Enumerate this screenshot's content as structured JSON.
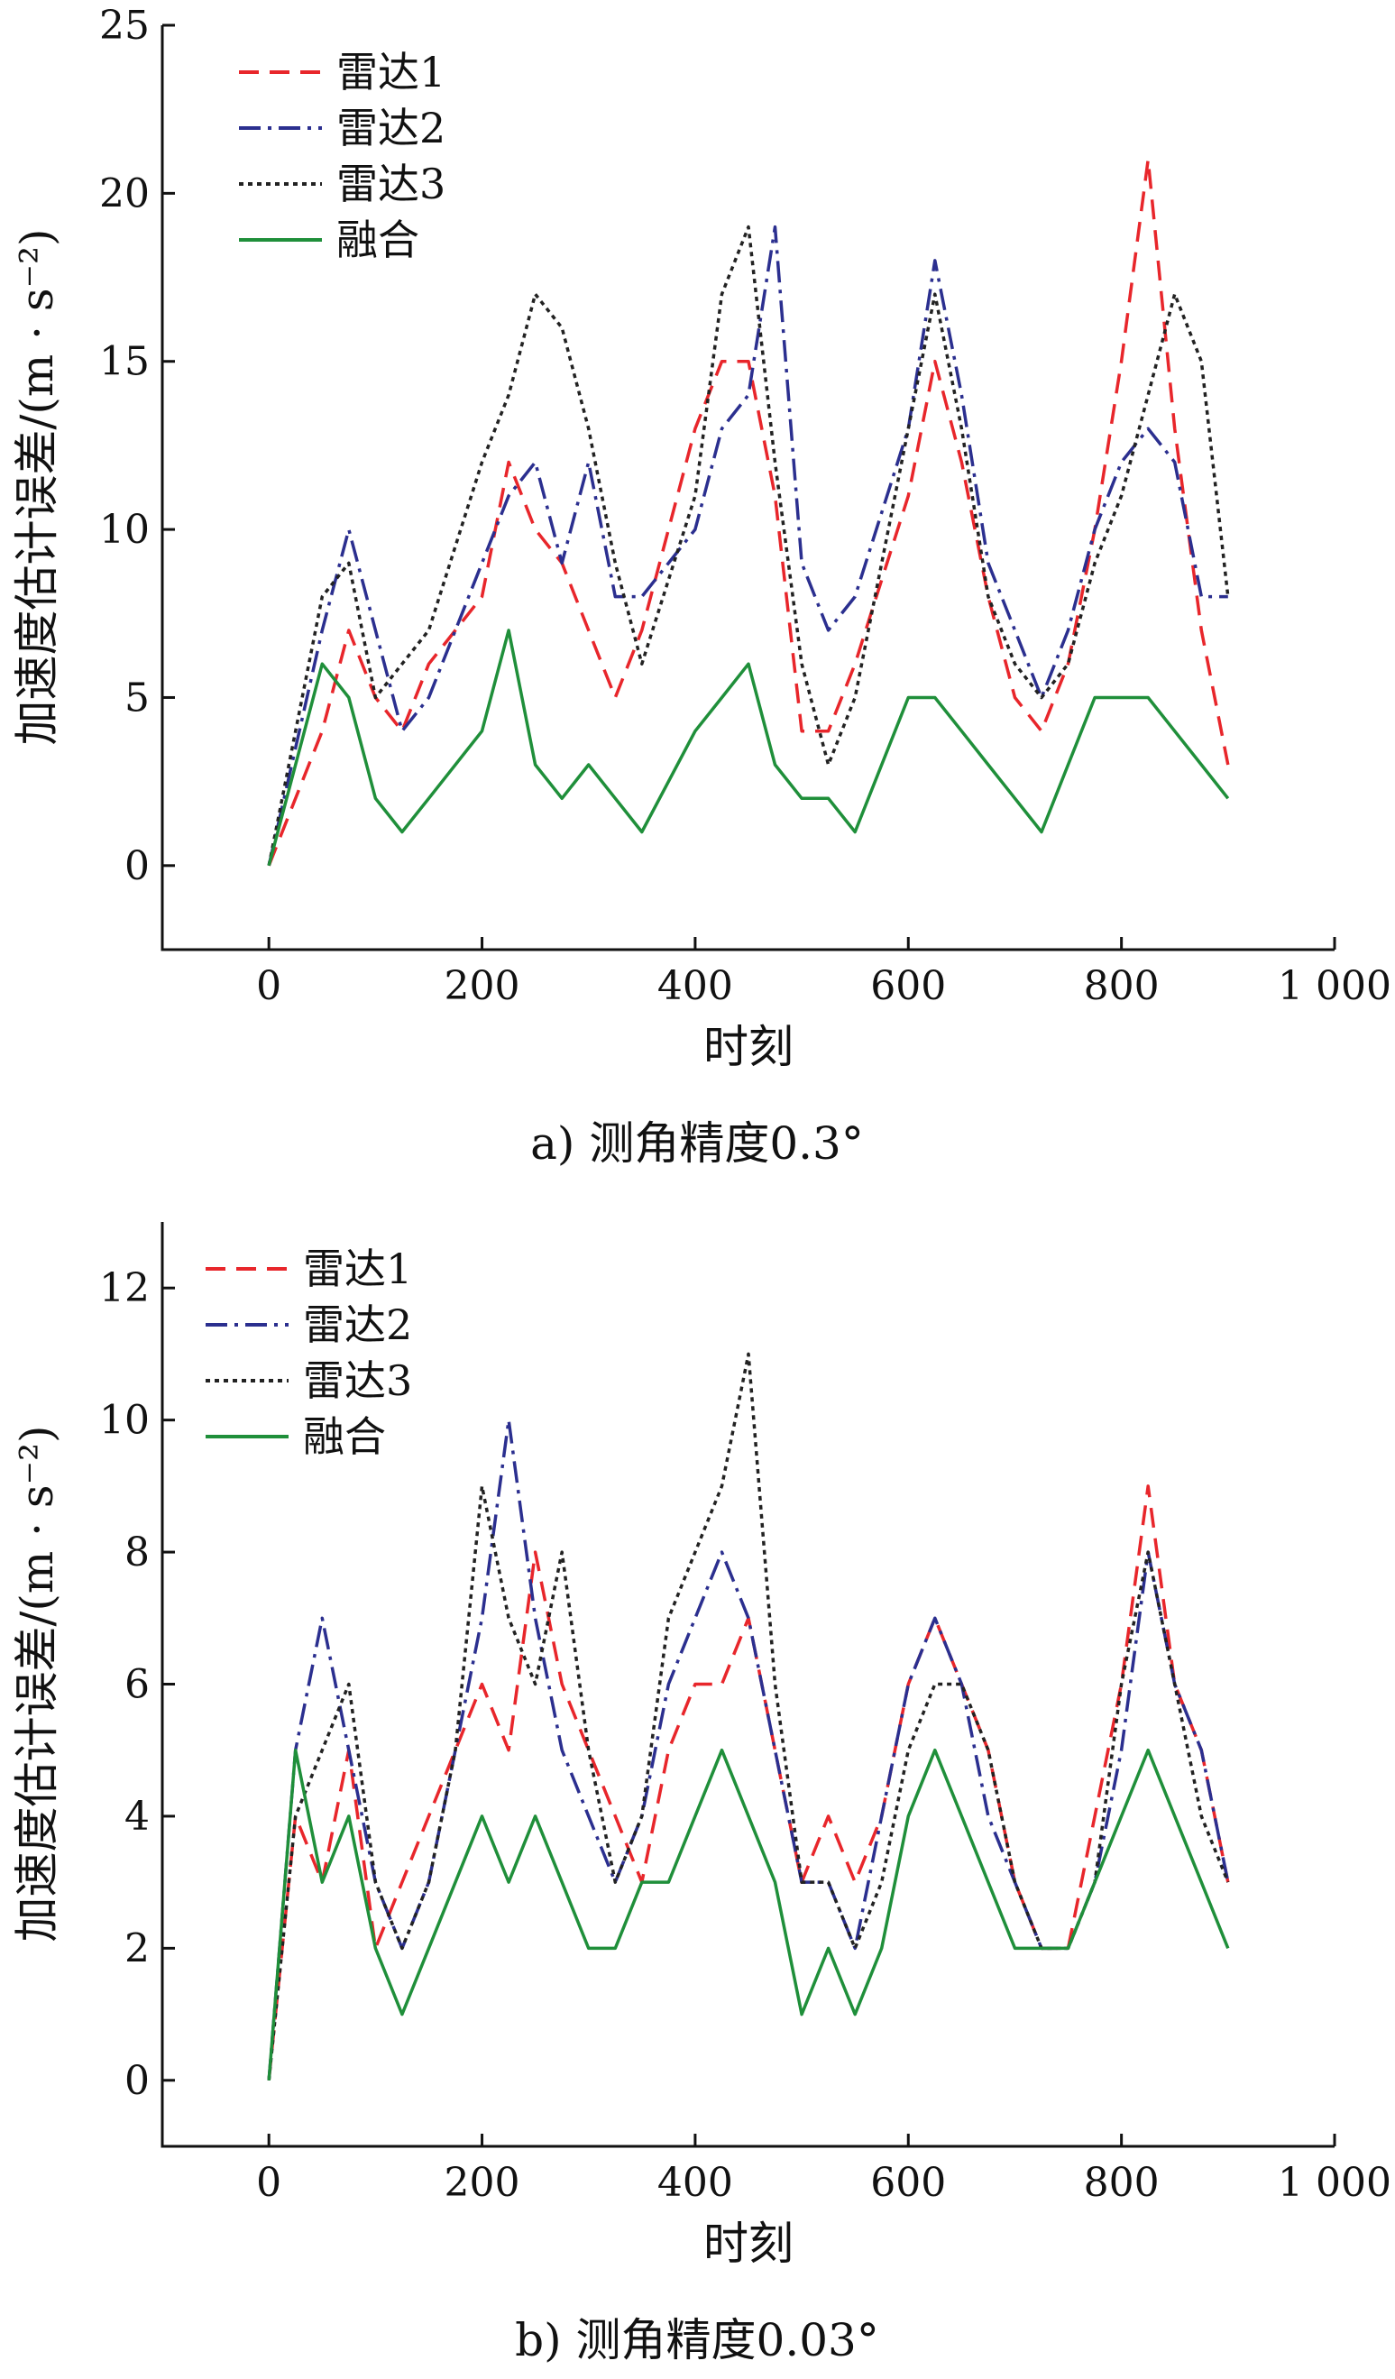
{
  "chart_data": [
    {
      "type": "line",
      "caption": "a) 测角精度0.3°",
      "xlabel": "时刻",
      "ylabel": "加速度估计误差/(m · s⁻²)",
      "xlim": [
        -100,
        1000
      ],
      "ylim": [
        -2.5,
        25
      ],
      "xticks": [
        0,
        200,
        400,
        600,
        800,
        1000
      ],
      "xtick_labels": [
        "0",
        "200",
        "400",
        "600",
        "800",
        "1 000"
      ],
      "yticks": [
        0,
        5,
        10,
        15,
        20,
        25
      ],
      "ytick_labels": [
        "0",
        "5",
        "10",
        "15",
        "20",
        "25"
      ],
      "legend_position": "top-left",
      "x": [
        0,
        50,
        75,
        100,
        125,
        150,
        200,
        225,
        250,
        275,
        300,
        325,
        350,
        400,
        425,
        450,
        475,
        500,
        525,
        550,
        600,
        625,
        650,
        675,
        700,
        725,
        750,
        775,
        800,
        825,
        850,
        875,
        900
      ],
      "series": [
        {
          "name": "雷达1",
          "color": "#e8262b",
          "dash": "22,12",
          "values": [
            0,
            4,
            7,
            5,
            4,
            6,
            8,
            12,
            10,
            9,
            7,
            5,
            7,
            13,
            15,
            15,
            11,
            4,
            4,
            6,
            11,
            15,
            12,
            8,
            5,
            4,
            6,
            10,
            15,
            21,
            13,
            7,
            3
          ]
        },
        {
          "name": "雷达2",
          "color": "#2b2f8f",
          "dash": "24,8,4,8",
          "values": [
            0,
            7,
            10,
            7,
            4,
            5,
            9,
            11,
            12,
            9,
            12,
            8,
            8,
            10,
            13,
            14,
            19,
            9,
            7,
            8,
            13,
            18,
            14,
            9,
            7,
            5,
            7,
            10,
            12,
            13,
            12,
            8,
            8
          ]
        },
        {
          "name": "雷达3",
          "color": "#222222",
          "dash": "5,5",
          "values": [
            0,
            8,
            9,
            5,
            6,
            7,
            12,
            14,
            17,
            16,
            13,
            9,
            6,
            11,
            17,
            19,
            12,
            6,
            3,
            5,
            13,
            17,
            13,
            8,
            6,
            5,
            6,
            9,
            11,
            14,
            17,
            15,
            8
          ]
        },
        {
          "name": "融合",
          "color": "#1f8f3a",
          "dash": "",
          "values": [
            0,
            6,
            5,
            2,
            1,
            2,
            4,
            7,
            3,
            2,
            3,
            2,
            1,
            4,
            5,
            6,
            3,
            2,
            2,
            1,
            5,
            5,
            4,
            3,
            2,
            1,
            3,
            5,
            5,
            5,
            4,
            3,
            2
          ]
        }
      ]
    },
    {
      "type": "line",
      "caption": "b) 测角精度0.03°",
      "xlabel": "时刻",
      "ylabel": "加速度估计误差/(m · s⁻²)",
      "xlim": [
        -100,
        1000
      ],
      "ylim": [
        -1,
        13
      ],
      "xticks": [
        0,
        200,
        400,
        600,
        800,
        1000
      ],
      "xtick_labels": [
        "0",
        "200",
        "400",
        "600",
        "800",
        "1 000"
      ],
      "yticks": [
        0,
        2,
        4,
        6,
        8,
        10,
        12
      ],
      "ytick_labels": [
        "0",
        "2",
        "4",
        "6",
        "8",
        "10",
        "12"
      ],
      "legend_position": "top-left",
      "x": [
        0,
        25,
        50,
        75,
        100,
        125,
        150,
        175,
        200,
        225,
        250,
        275,
        300,
        325,
        350,
        375,
        400,
        425,
        450,
        475,
        500,
        525,
        550,
        575,
        600,
        625,
        650,
        675,
        700,
        725,
        750,
        775,
        800,
        825,
        850,
        875,
        900
      ],
      "series": [
        {
          "name": "雷达1",
          "color": "#e8262b",
          "dash": "22,12",
          "values": [
            0,
            4,
            3,
            5,
            2,
            3,
            4,
            5,
            6,
            5,
            8,
            6,
            5,
            4,
            3,
            5,
            6,
            6,
            7,
            5,
            3,
            4,
            3,
            4,
            6,
            7,
            6,
            5,
            3,
            2,
            2,
            4,
            6,
            9,
            6,
            5,
            3
          ]
        },
        {
          "name": "雷达2",
          "color": "#2b2f8f",
          "dash": "24,8,4,8",
          "values": [
            0,
            5,
            7,
            5,
            3,
            2,
            3,
            5,
            7,
            10,
            7,
            5,
            4,
            3,
            4,
            6,
            7,
            8,
            7,
            5,
            3,
            3,
            2,
            4,
            6,
            7,
            6,
            4,
            3,
            2,
            2,
            3,
            5,
            8,
            6,
            5,
            3
          ]
        },
        {
          "name": "雷达3",
          "color": "#222222",
          "dash": "5,5",
          "values": [
            0,
            4,
            5,
            6,
            3,
            2,
            3,
            5,
            9,
            7,
            6,
            8,
            5,
            3,
            4,
            7,
            8,
            9,
            11,
            6,
            3,
            3,
            2,
            3,
            5,
            6,
            6,
            5,
            3,
            2,
            2,
            3,
            6,
            8,
            6,
            4,
            3
          ]
        },
        {
          "name": "融合",
          "color": "#1f8f3a",
          "dash": "",
          "values": [
            0,
            5,
            3,
            4,
            2,
            1,
            2,
            3,
            4,
            3,
            4,
            3,
            2,
            2,
            3,
            3,
            4,
            5,
            4,
            3,
            1,
            2,
            1,
            2,
            4,
            5,
            4,
            3,
            2,
            2,
            2,
            3,
            4,
            5,
            4,
            3,
            2
          ]
        }
      ]
    }
  ]
}
